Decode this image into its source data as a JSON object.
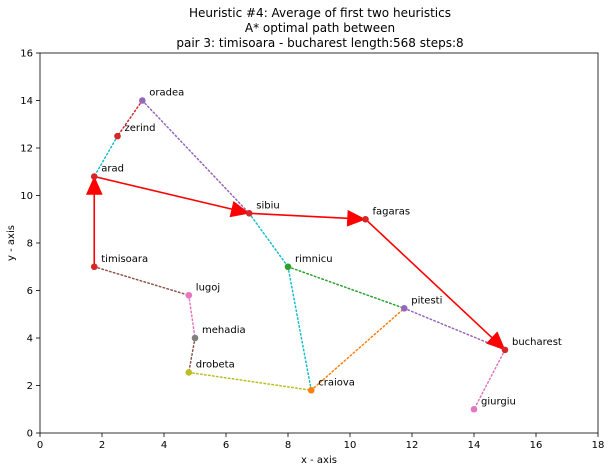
{
  "chart_data": {
    "type": "scatter",
    "title": [
      "Heuristic #4: Average of first two heuristics",
      "A* optimal path between",
      "pair 3: timisoara - bucharest length:568 steps:8"
    ],
    "xlabel": "x - axis",
    "ylabel": "y - axis",
    "xlim": [
      0,
      18
    ],
    "ylim": [
      0,
      16
    ],
    "xticks": [
      0,
      2,
      4,
      6,
      8,
      10,
      12,
      14,
      16,
      18
    ],
    "yticks": [
      0,
      2,
      4,
      6,
      8,
      10,
      12,
      14,
      16
    ],
    "grid": false,
    "cities": [
      {
        "name": "oradea",
        "x": 3.3,
        "y": 14.0,
        "color": "#9467bd"
      },
      {
        "name": "zerind",
        "x": 2.5,
        "y": 12.5,
        "color": "#d62728"
      },
      {
        "name": "arad",
        "x": 1.75,
        "y": 10.8,
        "color": "#d62728"
      },
      {
        "name": "sibiu",
        "x": 6.75,
        "y": 9.25,
        "color": "#d62728"
      },
      {
        "name": "fagaras",
        "x": 10.5,
        "y": 9.0,
        "color": "#d62728"
      },
      {
        "name": "timisoara",
        "x": 1.75,
        "y": 7.0,
        "color": "#d62728"
      },
      {
        "name": "rimnicu",
        "x": 8.0,
        "y": 7.0,
        "color": "#2ca02c"
      },
      {
        "name": "lugoj",
        "x": 4.8,
        "y": 5.8,
        "color": "#e377c2"
      },
      {
        "name": "pitesti",
        "x": 11.75,
        "y": 5.25,
        "color": "#9467bd"
      },
      {
        "name": "mehadia",
        "x": 5.0,
        "y": 4.0,
        "color": "#7f7f7f"
      },
      {
        "name": "bucharest",
        "x": 15.0,
        "y": 3.5,
        "color": "#d62728"
      },
      {
        "name": "drobeta",
        "x": 4.8,
        "y": 2.55,
        "color": "#bcbd22"
      },
      {
        "name": "craiova",
        "x": 8.75,
        "y": 1.8,
        "color": "#ff7f0e"
      },
      {
        "name": "giurgiu",
        "x": 14.0,
        "y": 1.0,
        "color": "#e377c2"
      }
    ],
    "edges": [
      {
        "from": "oradea",
        "to": "zerind",
        "color": "#d62728"
      },
      {
        "from": "zerind",
        "to": "arad",
        "color": "#17becf"
      },
      {
        "from": "oradea",
        "to": "sibiu",
        "color": "#9467bd"
      },
      {
        "from": "sibiu",
        "to": "rimnicu",
        "color": "#17becf"
      },
      {
        "from": "rimnicu",
        "to": "craiova",
        "color": "#17becf"
      },
      {
        "from": "rimnicu",
        "to": "pitesti",
        "color": "#2ca02c"
      },
      {
        "from": "timisoara",
        "to": "lugoj",
        "color": "#8c564b"
      },
      {
        "from": "lugoj",
        "to": "mehadia",
        "color": "#e377c2"
      },
      {
        "from": "mehadia",
        "to": "drobeta",
        "color": "#8c564b"
      },
      {
        "from": "drobeta",
        "to": "craiova",
        "color": "#bcbd22"
      },
      {
        "from": "craiova",
        "to": "pitesti",
        "color": "#ff7f0e"
      },
      {
        "from": "pitesti",
        "to": "bucharest",
        "color": "#9467bd"
      },
      {
        "from": "bucharest",
        "to": "giurgiu",
        "color": "#e377c2"
      }
    ],
    "path": [
      "timisoara",
      "arad",
      "sibiu",
      "fagaras",
      "bucharest"
    ],
    "path_color": "#ff0000"
  }
}
